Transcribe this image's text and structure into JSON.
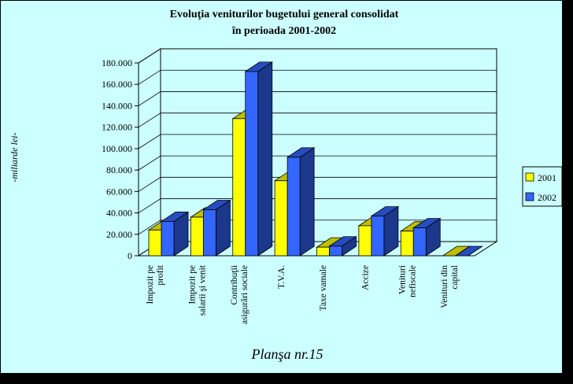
{
  "chart_data": {
    "type": "bar",
    "title_lines": [
      "Evoluţia veniturilor bugetului general consolidat",
      "în perioada 2001-2002"
    ],
    "ylabel": "-miliarde lei-",
    "categories": [
      [
        "Impozit pe",
        "profit"
      ],
      [
        "Impozit pe",
        "salarii şi venit"
      ],
      [
        "Contribuţii",
        "asigurări sociale"
      ],
      [
        "T.V.A."
      ],
      [
        "Taxe vamale"
      ],
      [
        "Accize"
      ],
      [
        "Venituri",
        "nefiscale"
      ],
      [
        "Venituri din",
        "capital"
      ]
    ],
    "series": [
      {
        "name": "2001",
        "color": "#FFFF00",
        "values": [
          24000,
          36000,
          128000,
          70000,
          8000,
          28000,
          23000,
          0
        ]
      },
      {
        "name": "2002",
        "color": "#3366FF",
        "values": [
          32000,
          43000,
          172000,
          92000,
          9000,
          37000,
          26000,
          0
        ]
      }
    ],
    "yticks": [
      "0",
      "20.000",
      "40.000",
      "60.000",
      "80.000",
      "100.000",
      "120.000",
      "140.000",
      "160.000",
      "180.000"
    ],
    "ylim": [
      0,
      180000
    ],
    "grid": true,
    "legend_position": "right"
  },
  "footer": "Planşa nr.15"
}
